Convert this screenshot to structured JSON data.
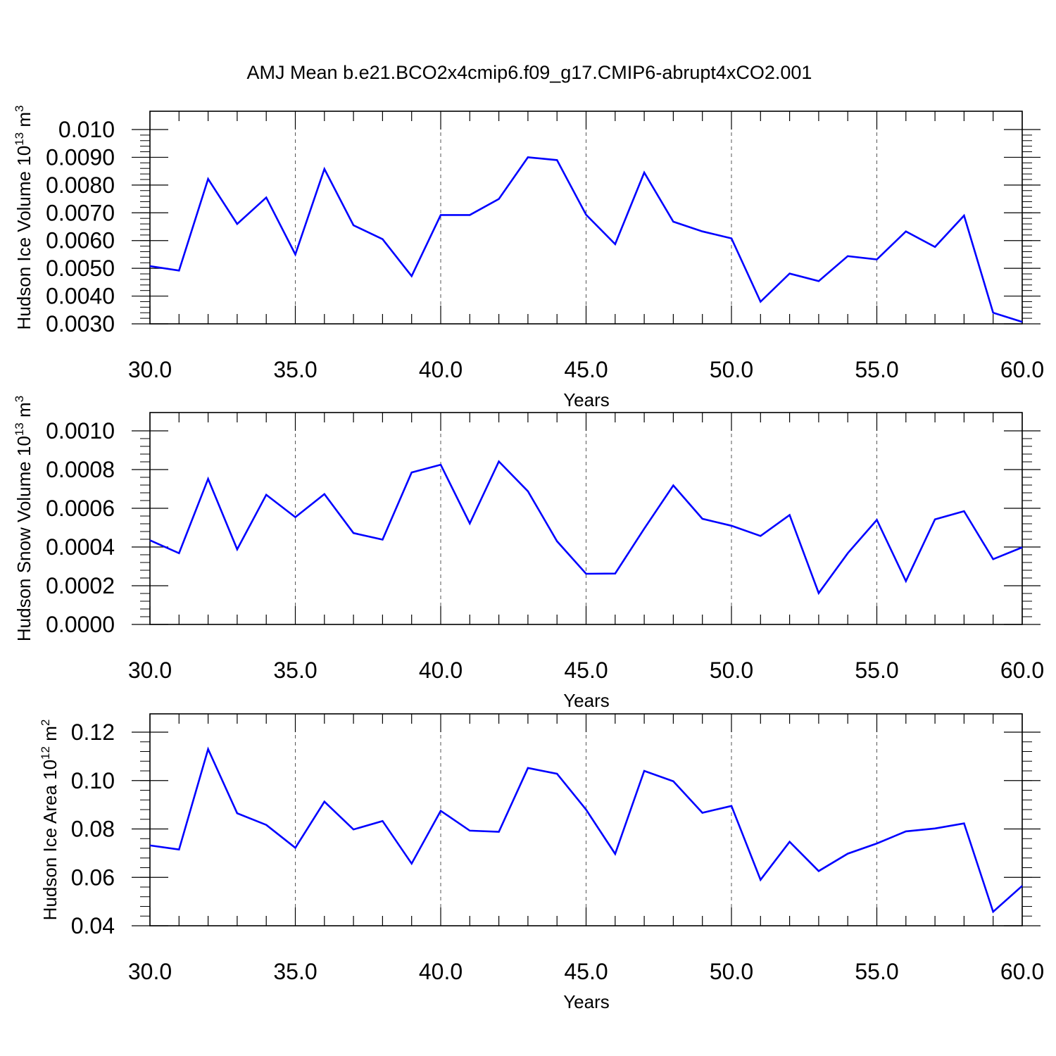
{
  "title": "AMJ Mean b.e21.BCO2x4cmip6.f09_g17.CMIP6-abrupt4xCO2.001",
  "chart_data": [
    {
      "type": "line",
      "ylabel_main": "Hudson Ice Volume 10",
      "ylabel_exp": "13",
      "ylabel_unit": " m",
      "ylabel_unit_exp": "3",
      "xlabel": "Years",
      "xlim": [
        30,
        60
      ],
      "ylim": [
        0.003,
        0.01
      ],
      "x_ticks": [
        "30.0",
        "35.0",
        "40.0",
        "45.0",
        "50.0",
        "55.0",
        "60.0"
      ],
      "y_ticks": [
        "0.010",
        "0.0090",
        "0.0080",
        "0.0070",
        "0.0060",
        "0.0050",
        "0.0040",
        "0.0030"
      ],
      "y_tick_values": [
        0.01,
        0.009,
        0.008,
        0.007,
        0.006,
        0.005,
        0.004,
        0.003
      ],
      "grid": "vertical dashed",
      "series": [
        {
          "color": "#0000ff",
          "x": [
            30,
            31,
            32,
            33,
            34,
            35,
            36,
            37,
            38,
            39,
            40,
            41,
            42,
            43,
            44,
            45,
            46,
            47,
            48,
            49,
            50,
            51,
            52,
            53,
            54,
            55,
            56,
            57,
            58,
            59,
            60
          ],
          "values": [
            0.00508,
            0.00492,
            0.00822,
            0.0066,
            0.00755,
            0.0055,
            0.00858,
            0.00655,
            0.00605,
            0.00472,
            0.00692,
            0.00692,
            0.0075,
            0.009,
            0.0089,
            0.00693,
            0.00587,
            0.00845,
            0.00668,
            0.00633,
            0.00608,
            0.0038,
            0.00481,
            0.00454,
            0.00544,
            0.00532,
            0.00633,
            0.00577,
            0.0069,
            0.0034,
            0.00307
          ]
        }
      ]
    },
    {
      "type": "line",
      "ylabel_main": "Hudson Snow Volume 10",
      "ylabel_exp": "13",
      "ylabel_unit": " m",
      "ylabel_unit_exp": "3",
      "xlabel": "Years",
      "xlim": [
        30,
        60
      ],
      "ylim": [
        0.0,
        0.001
      ],
      "x_ticks": [
        "30.0",
        "35.0",
        "40.0",
        "45.0",
        "50.0",
        "55.0",
        "60.0"
      ],
      "y_ticks": [
        "0.0010",
        "0.0008",
        "0.0006",
        "0.0004",
        "0.0002",
        "0.0000"
      ],
      "y_tick_values": [
        0.001,
        0.0008,
        0.0006,
        0.0004,
        0.0002,
        0.0
      ],
      "grid": "vertical dashed",
      "series": [
        {
          "color": "#0000ff",
          "x": [
            30,
            31,
            32,
            33,
            34,
            35,
            36,
            37,
            38,
            39,
            40,
            41,
            42,
            43,
            44,
            45,
            46,
            47,
            48,
            49,
            50,
            51,
            52,
            53,
            54,
            55,
            56,
            57,
            58,
            59,
            60
          ],
          "values": [
            0.000435,
            0.000368,
            0.000752,
            0.000388,
            0.00067,
            0.000554,
            0.000673,
            0.000472,
            0.000438,
            0.000785,
            0.000825,
            0.000522,
            0.000842,
            0.000688,
            0.00043,
            0.000262,
            0.000263,
            0.000495,
            0.000718,
            0.000546,
            0.00051,
            0.000457,
            0.000565,
            0.000162,
            0.000368,
            0.00054,
            0.000224,
            0.000543,
            0.000585,
            0.000337,
            0.000398
          ]
        }
      ]
    },
    {
      "type": "line",
      "ylabel_main": "Hudson Ice Area 10",
      "ylabel_exp": "12",
      "ylabel_unit": " m",
      "ylabel_unit_exp": "2",
      "xlabel": "Years",
      "xlim": [
        30,
        60
      ],
      "ylim": [
        0.04,
        0.12
      ],
      "x_ticks": [
        "30.0",
        "35.0",
        "40.0",
        "45.0",
        "50.0",
        "55.0",
        "60.0"
      ],
      "y_ticks": [
        "0.12",
        "0.10",
        "0.08",
        "0.06",
        "0.04"
      ],
      "y_tick_values": [
        0.12,
        0.1,
        0.08,
        0.06,
        0.04
      ],
      "grid": "vertical dashed",
      "series": [
        {
          "color": "#0000ff",
          "x": [
            30,
            31,
            32,
            33,
            34,
            35,
            36,
            37,
            38,
            39,
            40,
            41,
            42,
            43,
            44,
            45,
            46,
            47,
            48,
            49,
            50,
            51,
            52,
            53,
            54,
            55,
            56,
            57,
            58,
            59,
            60
          ],
          "values": [
            0.0732,
            0.0715,
            0.113,
            0.0865,
            0.0817,
            0.0722,
            0.0913,
            0.0798,
            0.0833,
            0.0657,
            0.0875,
            0.0793,
            0.0788,
            0.1052,
            0.1028,
            0.088,
            0.0697,
            0.104,
            0.0997,
            0.0867,
            0.0895,
            0.059,
            0.0747,
            0.0626,
            0.0698,
            0.074,
            0.079,
            0.0802,
            0.0823,
            0.0458,
            0.0565
          ]
        }
      ]
    }
  ]
}
